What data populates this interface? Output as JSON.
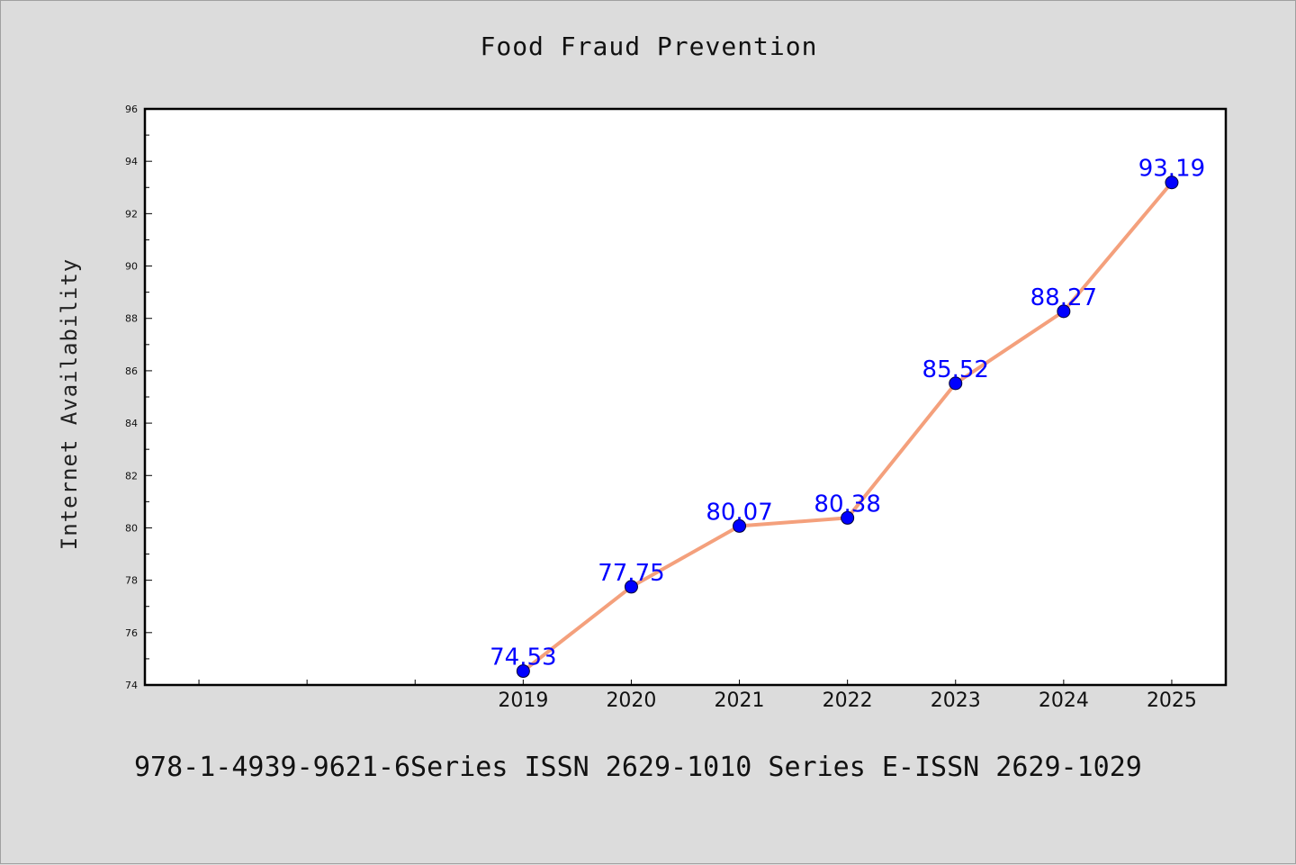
{
  "page": {
    "title": "Food Fraud Prevention",
    "footer": "978-1-4939-9621-6Series ISSN 2629-1010 Series E-ISSN 2629-1029"
  },
  "colors": {
    "background": "#dcdcdc",
    "plot_background": "#ffffff",
    "line": "#f4a07c",
    "marker": "#0000ff",
    "label": "#0000ff"
  },
  "chart_data": {
    "type": "line",
    "title": "Food Fraud Prevention",
    "xlabel": "",
    "ylabel": "Internet Availability",
    "ylim": [
      74,
      96
    ],
    "yticks": [
      74,
      76,
      78,
      80,
      82,
      84,
      86,
      88,
      90,
      92,
      94,
      96
    ],
    "x_domain": [
      2015.5,
      2025.5
    ],
    "x": [
      2019,
      2020,
      2021,
      2022,
      2023,
      2024,
      2025
    ],
    "series": [
      {
        "values": [
          74.53,
          77.75,
          80.07,
          80.38,
          85.52,
          88.27,
          93.19
        ]
      }
    ],
    "data_labels": [
      "74.53",
      "77.75",
      "80.07",
      "80.38",
      "85.52",
      "88.27",
      "93.19"
    ],
    "grid": false,
    "legend": "none"
  }
}
